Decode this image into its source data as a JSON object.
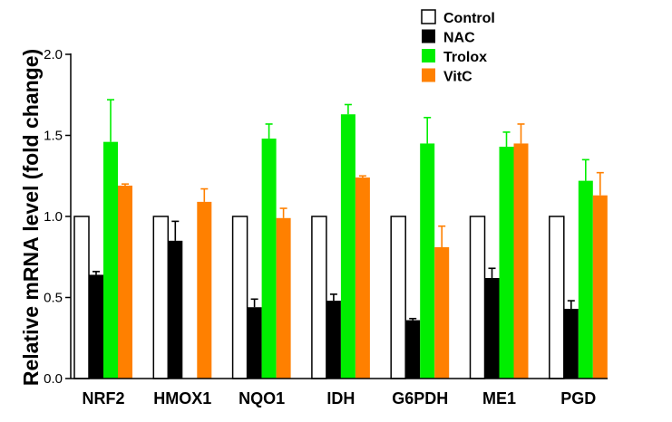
{
  "chart_data": {
    "type": "bar",
    "title": "",
    "xlabel": "",
    "ylabel": "Relative mRNA level (fold change)",
    "ylim": [
      0,
      2.0
    ],
    "yticks": [
      "0.0",
      "0.5",
      "1.0",
      "1.5",
      "2.0"
    ],
    "categories": [
      "NRF2",
      "HMOX1",
      "NQO1",
      "IDH",
      "G6PDH",
      "ME1",
      "PGD"
    ],
    "legend_position": "top-right",
    "grid": false,
    "series": [
      {
        "name": "Control",
        "color": "#ffffff",
        "values": [
          1.0,
          1.0,
          1.0,
          1.0,
          1.0,
          1.0,
          1.0
        ],
        "errors": [
          0,
          0,
          0,
          0,
          0,
          0,
          0
        ]
      },
      {
        "name": "NAC",
        "color": "#000000",
        "values": [
          0.64,
          0.85,
          0.44,
          0.48,
          0.36,
          0.62,
          0.43
        ],
        "errors": [
          0.02,
          0.12,
          0.05,
          0.04,
          0.01,
          0.06,
          0.05
        ]
      },
      {
        "name": "Trolox",
        "color": "#00ee00",
        "values": [
          1.46,
          null,
          1.48,
          1.63,
          1.45,
          1.43,
          1.22
        ],
        "errors": [
          0.26,
          0,
          0.09,
          0.06,
          0.16,
          0.09,
          0.13
        ]
      },
      {
        "name": "VitC",
        "color": "#ff8000",
        "values": [
          1.19,
          1.09,
          0.99,
          1.24,
          0.81,
          1.45,
          1.13
        ],
        "errors": [
          0.01,
          0.08,
          0.06,
          0.01,
          0.13,
          0.12,
          0.14
        ]
      }
    ]
  }
}
